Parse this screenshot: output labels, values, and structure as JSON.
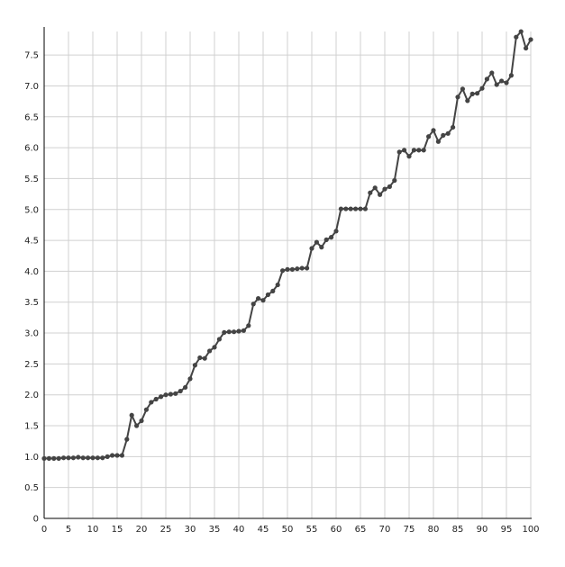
{
  "chart_data": {
    "type": "line",
    "title": "",
    "xlabel": "",
    "ylabel": "",
    "grid": true,
    "xlim": [
      0,
      100
    ],
    "ylim": [
      0,
      7.9
    ],
    "x_ticks": [
      "0",
      "5",
      "10",
      "15",
      "20",
      "25",
      "30",
      "35",
      "40",
      "45",
      "50",
      "55",
      "60",
      "65",
      "70",
      "75",
      "80",
      "85",
      "90",
      "95",
      "100"
    ],
    "y_ticks": [
      "0",
      "0.5",
      "1.0",
      "1.5",
      "2.0",
      "2.5",
      "3.0",
      "3.5",
      "4.0",
      "4.5",
      "5.0",
      "5.5",
      "6.0",
      "6.5",
      "7.0",
      "7.5"
    ],
    "colors": {
      "line": "#444444",
      "grid": "#d0d0d0",
      "axis": "#000000"
    },
    "x": [
      0,
      1,
      2,
      3,
      4,
      5,
      6,
      7,
      8,
      9,
      10,
      11,
      12,
      13,
      14,
      15,
      16,
      17,
      18,
      19,
      20,
      21,
      22,
      23,
      24,
      25,
      26,
      27,
      28,
      29,
      30,
      31,
      32,
      33,
      34,
      35,
      36,
      37,
      38,
      39,
      40,
      41,
      42,
      43,
      44,
      45,
      46,
      47,
      48,
      49,
      50,
      51,
      52,
      53,
      54,
      55,
      56,
      57,
      58,
      59,
      60,
      61,
      62,
      63,
      64,
      65,
      66,
      67,
      68,
      69,
      70,
      71,
      72,
      73,
      74,
      75,
      76,
      77,
      78,
      79,
      80,
      81,
      82,
      83,
      84,
      85,
      86,
      87,
      88,
      89,
      90,
      91,
      92,
      93,
      94,
      95,
      96,
      97,
      98,
      99,
      100
    ],
    "y": [
      0.97,
      0.97,
      0.97,
      0.97,
      0.98,
      0.98,
      0.98,
      0.99,
      0.98,
      0.98,
      0.98,
      0.98,
      0.98,
      1.0,
      1.02,
      1.02,
      1.02,
      1.28,
      1.67,
      1.5,
      1.58,
      1.76,
      1.88,
      1.93,
      1.97,
      2.0,
      2.01,
      2.02,
      2.06,
      2.12,
      2.26,
      2.48,
      2.6,
      2.59,
      2.71,
      2.77,
      2.9,
      3.01,
      3.02,
      3.02,
      3.03,
      3.04,
      3.12,
      3.47,
      3.56,
      3.53,
      3.62,
      3.68,
      3.78,
      4.01,
      4.03,
      4.03,
      4.04,
      4.05,
      4.05,
      4.37,
      4.47,
      4.39,
      4.51,
      4.55,
      4.65,
      5.01,
      5.01,
      5.01,
      5.01,
      5.01,
      5.01,
      5.27,
      5.35,
      5.24,
      5.33,
      5.37,
      5.47,
      5.93,
      5.96,
      5.86,
      5.96,
      5.96,
      5.96,
      6.18,
      6.28,
      6.1,
      6.2,
      6.23,
      6.33,
      6.82,
      6.95,
      6.76,
      6.87,
      6.88,
      6.96,
      7.11,
      7.21,
      7.02,
      7.08,
      7.05,
      7.17,
      7.79,
      7.88,
      7.61,
      7.75
    ]
  }
}
